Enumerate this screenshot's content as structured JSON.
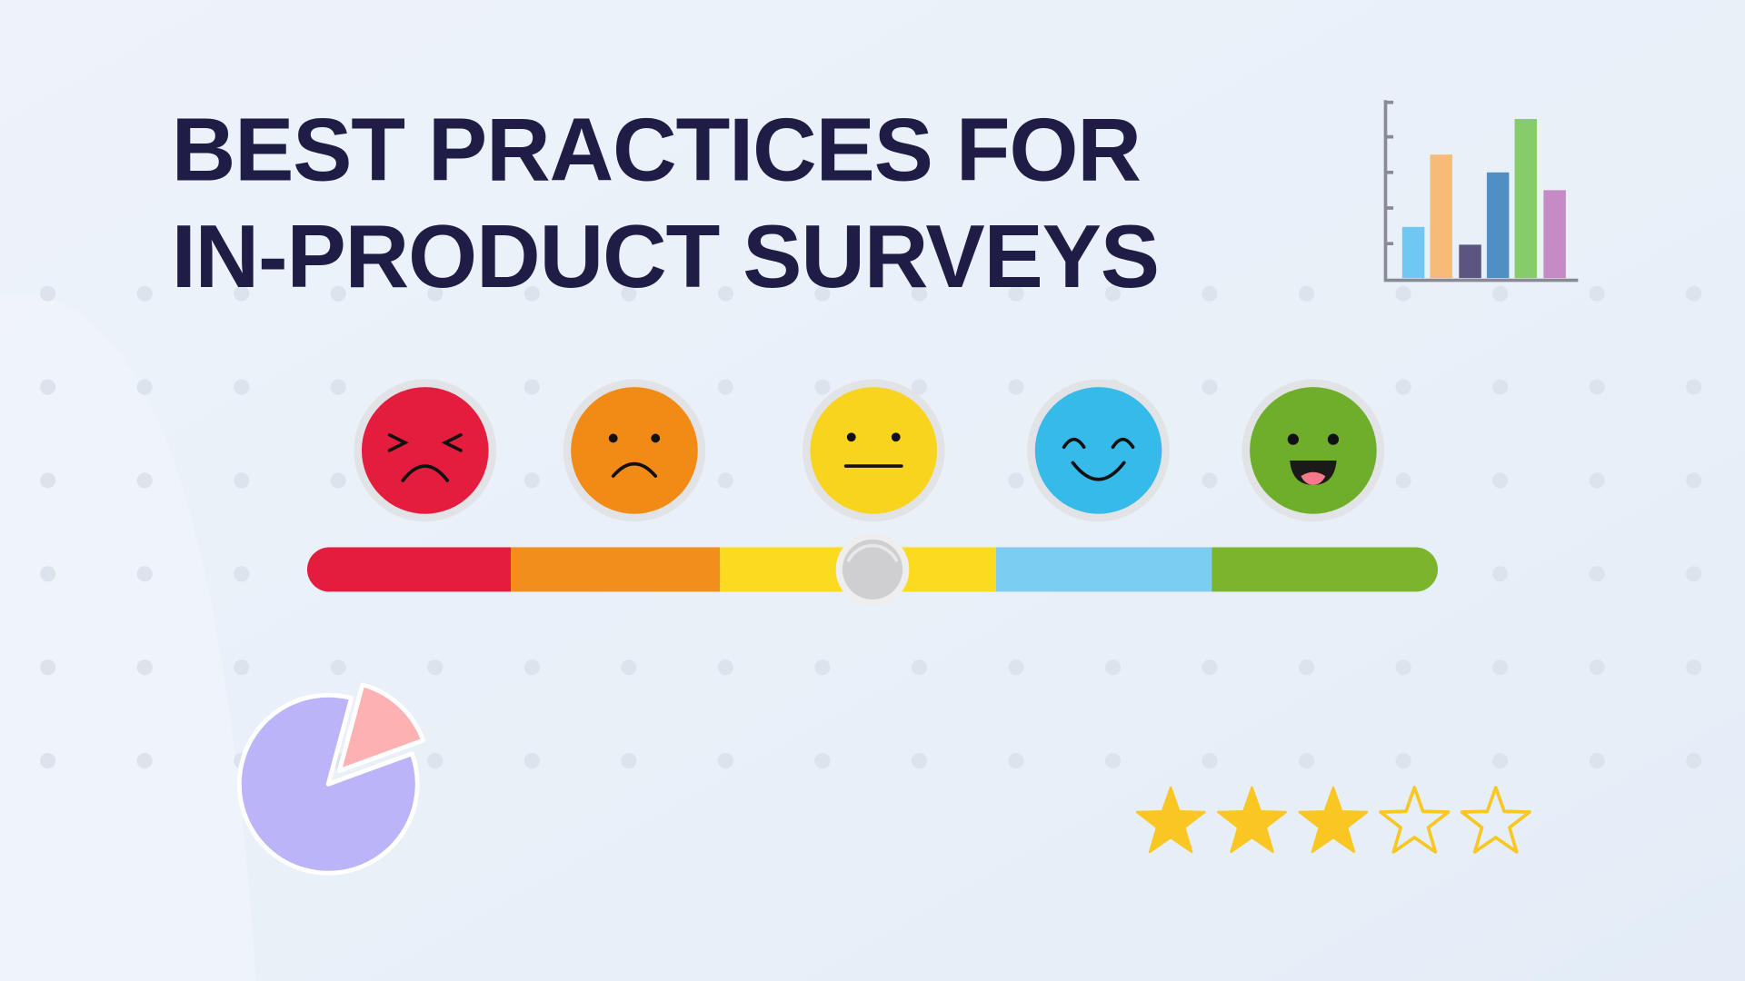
{
  "header": {
    "title": [
      "BEST PRACTICES FOR",
      "IN-PRODUCT SURVEYS"
    ]
  }
}
